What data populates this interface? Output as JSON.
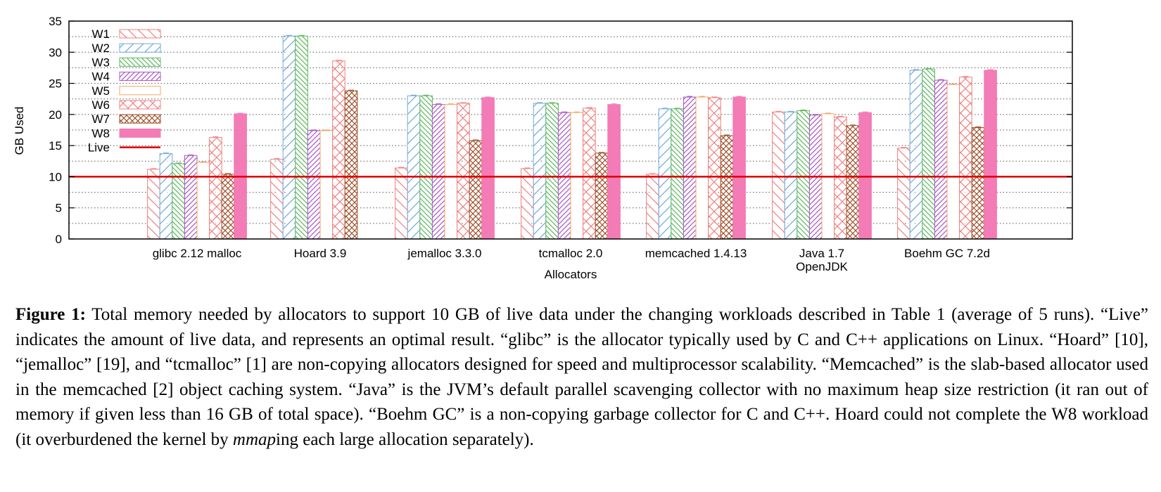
{
  "chart_data": {
    "type": "bar",
    "ylabel": "GB Used",
    "xlabel": "Allocators",
    "ylim": [
      0,
      35
    ],
    "yticks": [
      "0",
      "5",
      "10",
      "15",
      "20",
      "25",
      "30",
      "35"
    ],
    "grid": "horizontal dotted",
    "legend_position": "top-left",
    "categories": [
      "glibc 2.12 malloc",
      "Hoard 3.9",
      "jemalloc 3.3.0",
      "tcmalloc 2.0",
      "memcached 1.4.13",
      "Java 1.7\nOpenJDK",
      "Boehm GC 7.2d"
    ],
    "series": [
      {
        "name": "W1",
        "color": "#f08080",
        "pattern": "diag-back",
        "values": [
          11.2,
          12.8,
          11.4,
          11.3,
          10.4,
          20.4,
          14.6
        ]
      },
      {
        "name": "W2",
        "color": "#6fa8dc",
        "pattern": "diag-fwd",
        "values": [
          13.7,
          32.6,
          23.0,
          21.8,
          20.9,
          20.4,
          27.1
        ]
      },
      {
        "name": "W3",
        "color": "#5cb85c",
        "pattern": "diag-back-dense",
        "values": [
          12.1,
          32.6,
          23.0,
          21.8,
          20.9,
          20.6,
          27.3
        ]
      },
      {
        "name": "W4",
        "color": "#a855c8",
        "pattern": "diag-fwd-dense",
        "values": [
          13.4,
          17.4,
          21.6,
          20.3,
          22.8,
          19.9,
          25.5
        ]
      },
      {
        "name": "W5",
        "color": "#f4a460",
        "pattern": "solid-open",
        "values": [
          12.3,
          17.4,
          21.6,
          20.3,
          22.8,
          20.1,
          24.8
        ]
      },
      {
        "name": "W6",
        "color": "#f08080",
        "pattern": "crosshatch",
        "values": [
          16.3,
          28.6,
          21.8,
          21.0,
          22.7,
          19.6,
          26.0
        ]
      },
      {
        "name": "W7",
        "color": "#a0522d",
        "pattern": "crosshatch-dense",
        "values": [
          10.4,
          23.8,
          15.8,
          13.8,
          16.6,
          18.2,
          17.9
        ]
      },
      {
        "name": "W8",
        "color": "#f37bb6",
        "pattern": "solid",
        "values": [
          20.1,
          null,
          22.7,
          21.6,
          22.8,
          20.3,
          27.1
        ]
      }
    ],
    "live": {
      "name": "Live",
      "value": 10,
      "color": "#dd0000"
    }
  },
  "caption": {
    "label": "Figure 1:",
    "part1": " Total memory needed by allocators to support 10 GB of live data under the changing workloads described in Table 1 (average of 5 runs). “Live” indicates the amount of live data, and represents an optimal result. “glibc” is the allocator typically used by C and C++ applications on Linux. “Hoard” [10], “jemalloc” [19], and “tcmalloc” [1] are non-copying allocators designed for speed and multiprocessor scalability. “Memcached” is the slab-based allocator used in the memcached [2] object caching system. “Java” is the JVM’s default parallel scavenging collector with no maximum heap size restriction (it ran out of memory if given less than 16 GB of total space). “Boehm GC” is a non-copying garbage collector for C and C++. Hoard could not complete the W8 workload (it overburdened the kernel by ",
    "emph": "mmap",
    "part2": "ing each large allocation separately)."
  }
}
